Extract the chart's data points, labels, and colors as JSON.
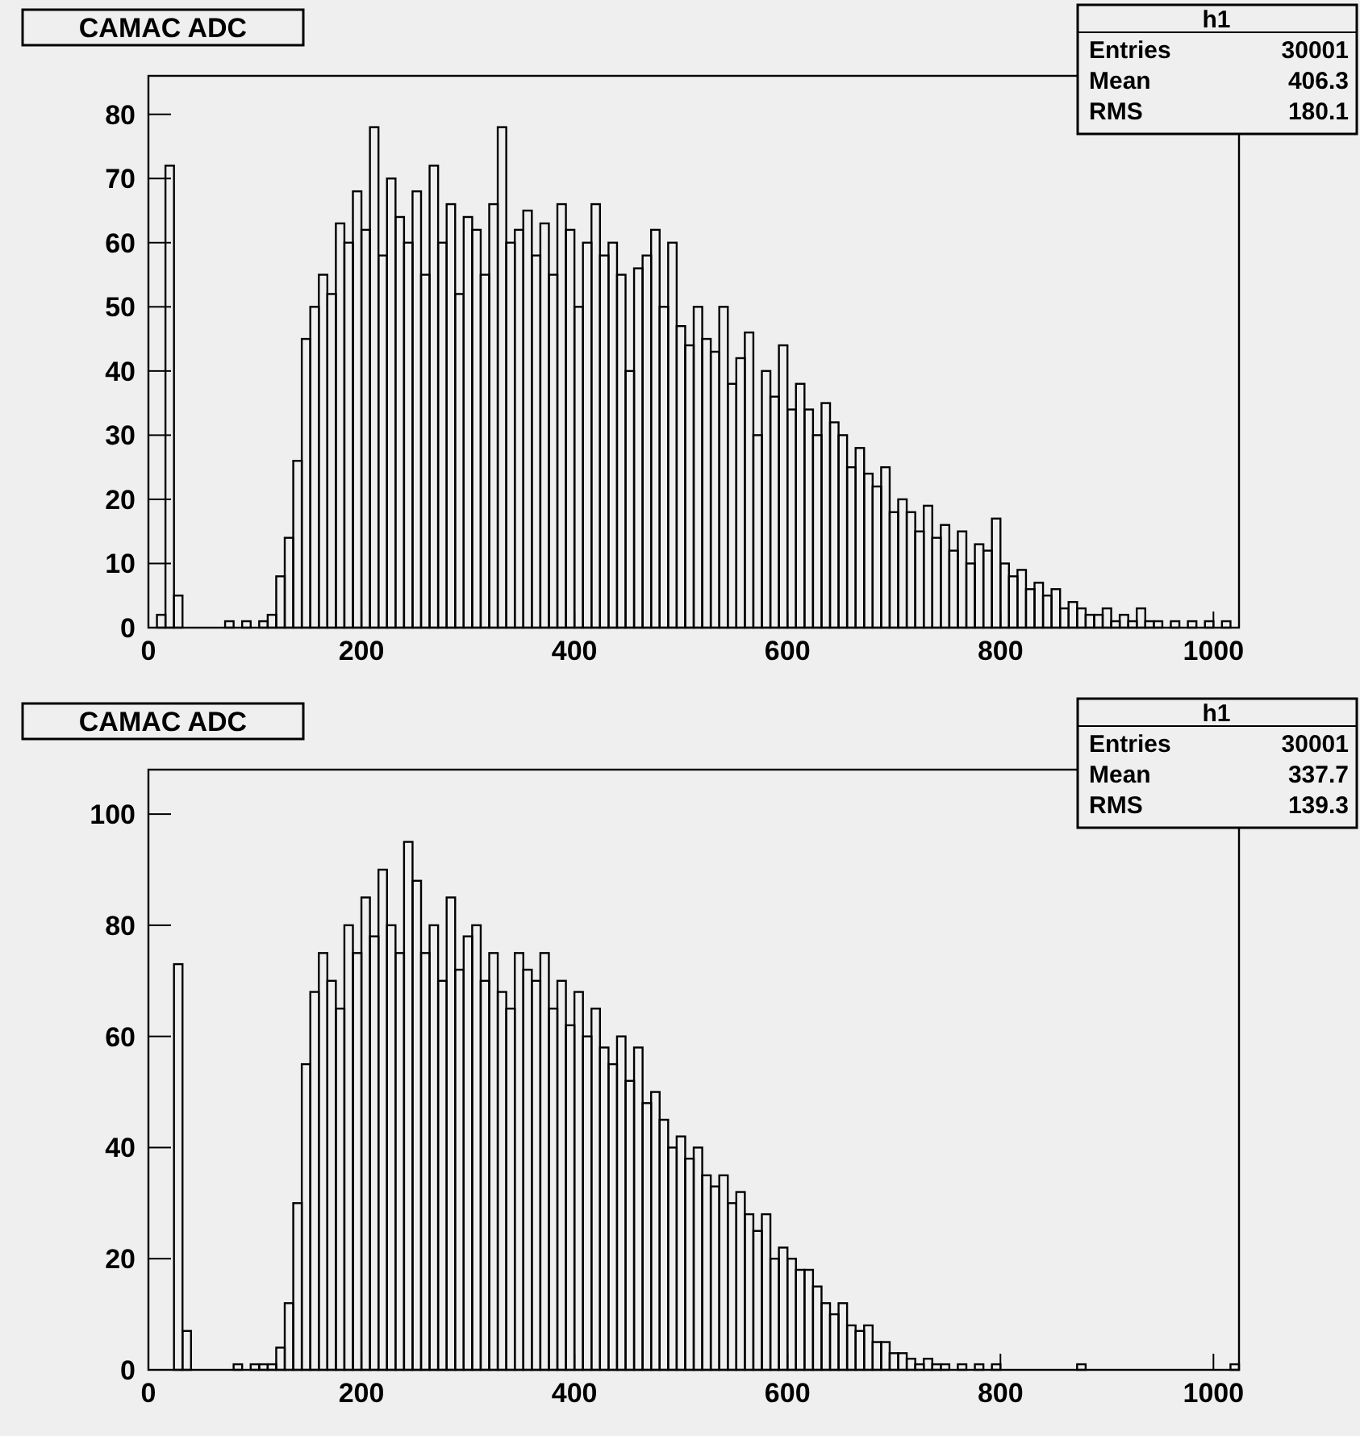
{
  "chart_data": [
    {
      "type": "histogram",
      "title": "CAMAC ADC",
      "annotations": [
        "h1",
        "Entries",
        "30001",
        "Mean",
        "406.3",
        "RMS",
        "180.1"
      ],
      "color": "#000000",
      "bins": [
        0,
        8,
        16,
        24,
        32,
        40,
        48,
        56,
        64,
        72,
        80,
        88,
        96,
        104,
        112,
        120,
        128,
        136,
        144,
        152,
        160,
        168,
        176,
        184,
        192,
        200,
        208,
        216,
        224,
        232,
        240,
        248,
        256,
        264,
        272,
        280,
        288,
        296,
        304,
        312,
        320,
        328,
        336,
        344,
        352,
        360,
        368,
        376,
        384,
        392,
        400,
        408,
        416,
        424,
        432,
        440,
        448,
        456,
        464,
        472,
        480,
        488,
        496,
        504,
        512,
        520,
        528,
        536,
        544,
        552,
        560,
        568,
        576,
        584,
        592,
        600,
        608,
        616,
        624,
        632,
        640,
        648,
        656,
        664,
        672,
        680,
        688,
        696,
        704,
        712,
        720,
        728,
        736,
        744,
        752,
        760,
        768,
        776,
        784,
        792,
        800,
        808,
        816,
        824,
        832,
        840,
        848,
        856,
        864,
        872,
        880,
        888,
        896,
        904,
        912,
        920,
        928,
        936,
        944,
        952,
        960,
        968,
        976,
        984,
        992,
        1000,
        1008,
        1016,
        1024
      ],
      "values": [
        0,
        2,
        72,
        5,
        0,
        0,
        0,
        0,
        0,
        1,
        0,
        1,
        0,
        1,
        2,
        8,
        14,
        26,
        45,
        50,
        55,
        52,
        63,
        60,
        68,
        62,
        78,
        58,
        70,
        64,
        60,
        68,
        55,
        72,
        60,
        66,
        52,
        64,
        62,
        55,
        66,
        78,
        60,
        62,
        65,
        58,
        63,
        55,
        66,
        62,
        50,
        60,
        66,
        58,
        60,
        55,
        40,
        56,
        58,
        62,
        50,
        60,
        47,
        44,
        50,
        45,
        43,
        50,
        38,
        42,
        46,
        30,
        40,
        36,
        44,
        34,
        38,
        34,
        30,
        35,
        32,
        30,
        25,
        28,
        24,
        22,
        25,
        18,
        20,
        18,
        15,
        19,
        14,
        16,
        12,
        15,
        10,
        13,
        12,
        17,
        10,
        8,
        9,
        6,
        7,
        5,
        6,
        3,
        4,
        3,
        2,
        2,
        3,
        1,
        2,
        1,
        3,
        1,
        1,
        0,
        1,
        0,
        1,
        0,
        1,
        0,
        1,
        0
      ],
      "xlim": [
        0,
        1024
      ],
      "xticks": [
        0,
        200,
        400,
        600,
        800,
        1000
      ],
      "ylim": [
        0,
        86
      ],
      "yticks": [
        0,
        10,
        20,
        30,
        40,
        50,
        60,
        70,
        80
      ]
    },
    {
      "type": "histogram",
      "title": "CAMAC ADC",
      "annotations": [
        "h1",
        "Entries",
        "30001",
        "Mean",
        "337.7",
        "RMS",
        "139.3"
      ],
      "color": "#000000",
      "bins": [
        0,
        8,
        16,
        24,
        32,
        40,
        48,
        56,
        64,
        72,
        80,
        88,
        96,
        104,
        112,
        120,
        128,
        136,
        144,
        152,
        160,
        168,
        176,
        184,
        192,
        200,
        208,
        216,
        224,
        232,
        240,
        248,
        256,
        264,
        272,
        280,
        288,
        296,
        304,
        312,
        320,
        328,
        336,
        344,
        352,
        360,
        368,
        376,
        384,
        392,
        400,
        408,
        416,
        424,
        432,
        440,
        448,
        456,
        464,
        472,
        480,
        488,
        496,
        504,
        512,
        520,
        528,
        536,
        544,
        552,
        560,
        568,
        576,
        584,
        592,
        600,
        608,
        616,
        624,
        632,
        640,
        648,
        656,
        664,
        672,
        680,
        688,
        696,
        704,
        712,
        720,
        728,
        736,
        744,
        752,
        760,
        768,
        776,
        784,
        792,
        800,
        808,
        816,
        824,
        832,
        840,
        848,
        856,
        864,
        872,
        880,
        888,
        896,
        904,
        912,
        920,
        928,
        936,
        944,
        952,
        960,
        968,
        976,
        984,
        992,
        1000,
        1008,
        1016,
        1024
      ],
      "values": [
        0,
        0,
        0,
        73,
        7,
        0,
        0,
        0,
        0,
        0,
        1,
        0,
        1,
        1,
        1,
        4,
        12,
        30,
        55,
        68,
        75,
        70,
        65,
        80,
        75,
        85,
        78,
        90,
        80,
        75,
        95,
        88,
        75,
        80,
        70,
        85,
        72,
        78,
        80,
        70,
        75,
        68,
        65,
        75,
        72,
        70,
        75,
        65,
        70,
        62,
        68,
        60,
        65,
        58,
        55,
        60,
        52,
        58,
        48,
        50,
        45,
        40,
        42,
        38,
        40,
        35,
        33,
        35,
        30,
        32,
        28,
        25,
        28,
        20,
        22,
        20,
        18,
        18,
        15,
        12,
        10,
        12,
        8,
        7,
        8,
        5,
        5,
        3,
        3,
        2,
        1,
        2,
        1,
        1,
        0,
        1,
        0,
        1,
        0,
        1,
        0,
        0,
        0,
        0,
        0,
        0,
        0,
        0,
        0,
        1,
        0,
        0,
        0,
        0,
        0,
        0,
        0,
        0,
        0,
        0,
        0,
        0,
        0,
        0,
        0,
        0,
        0,
        1
      ],
      "xlim": [
        0,
        1024
      ],
      "xticks": [
        0,
        200,
        400,
        600,
        800,
        1000
      ],
      "ylim": [
        0,
        108
      ],
      "yticks": [
        0,
        20,
        40,
        60,
        80,
        100
      ]
    }
  ]
}
